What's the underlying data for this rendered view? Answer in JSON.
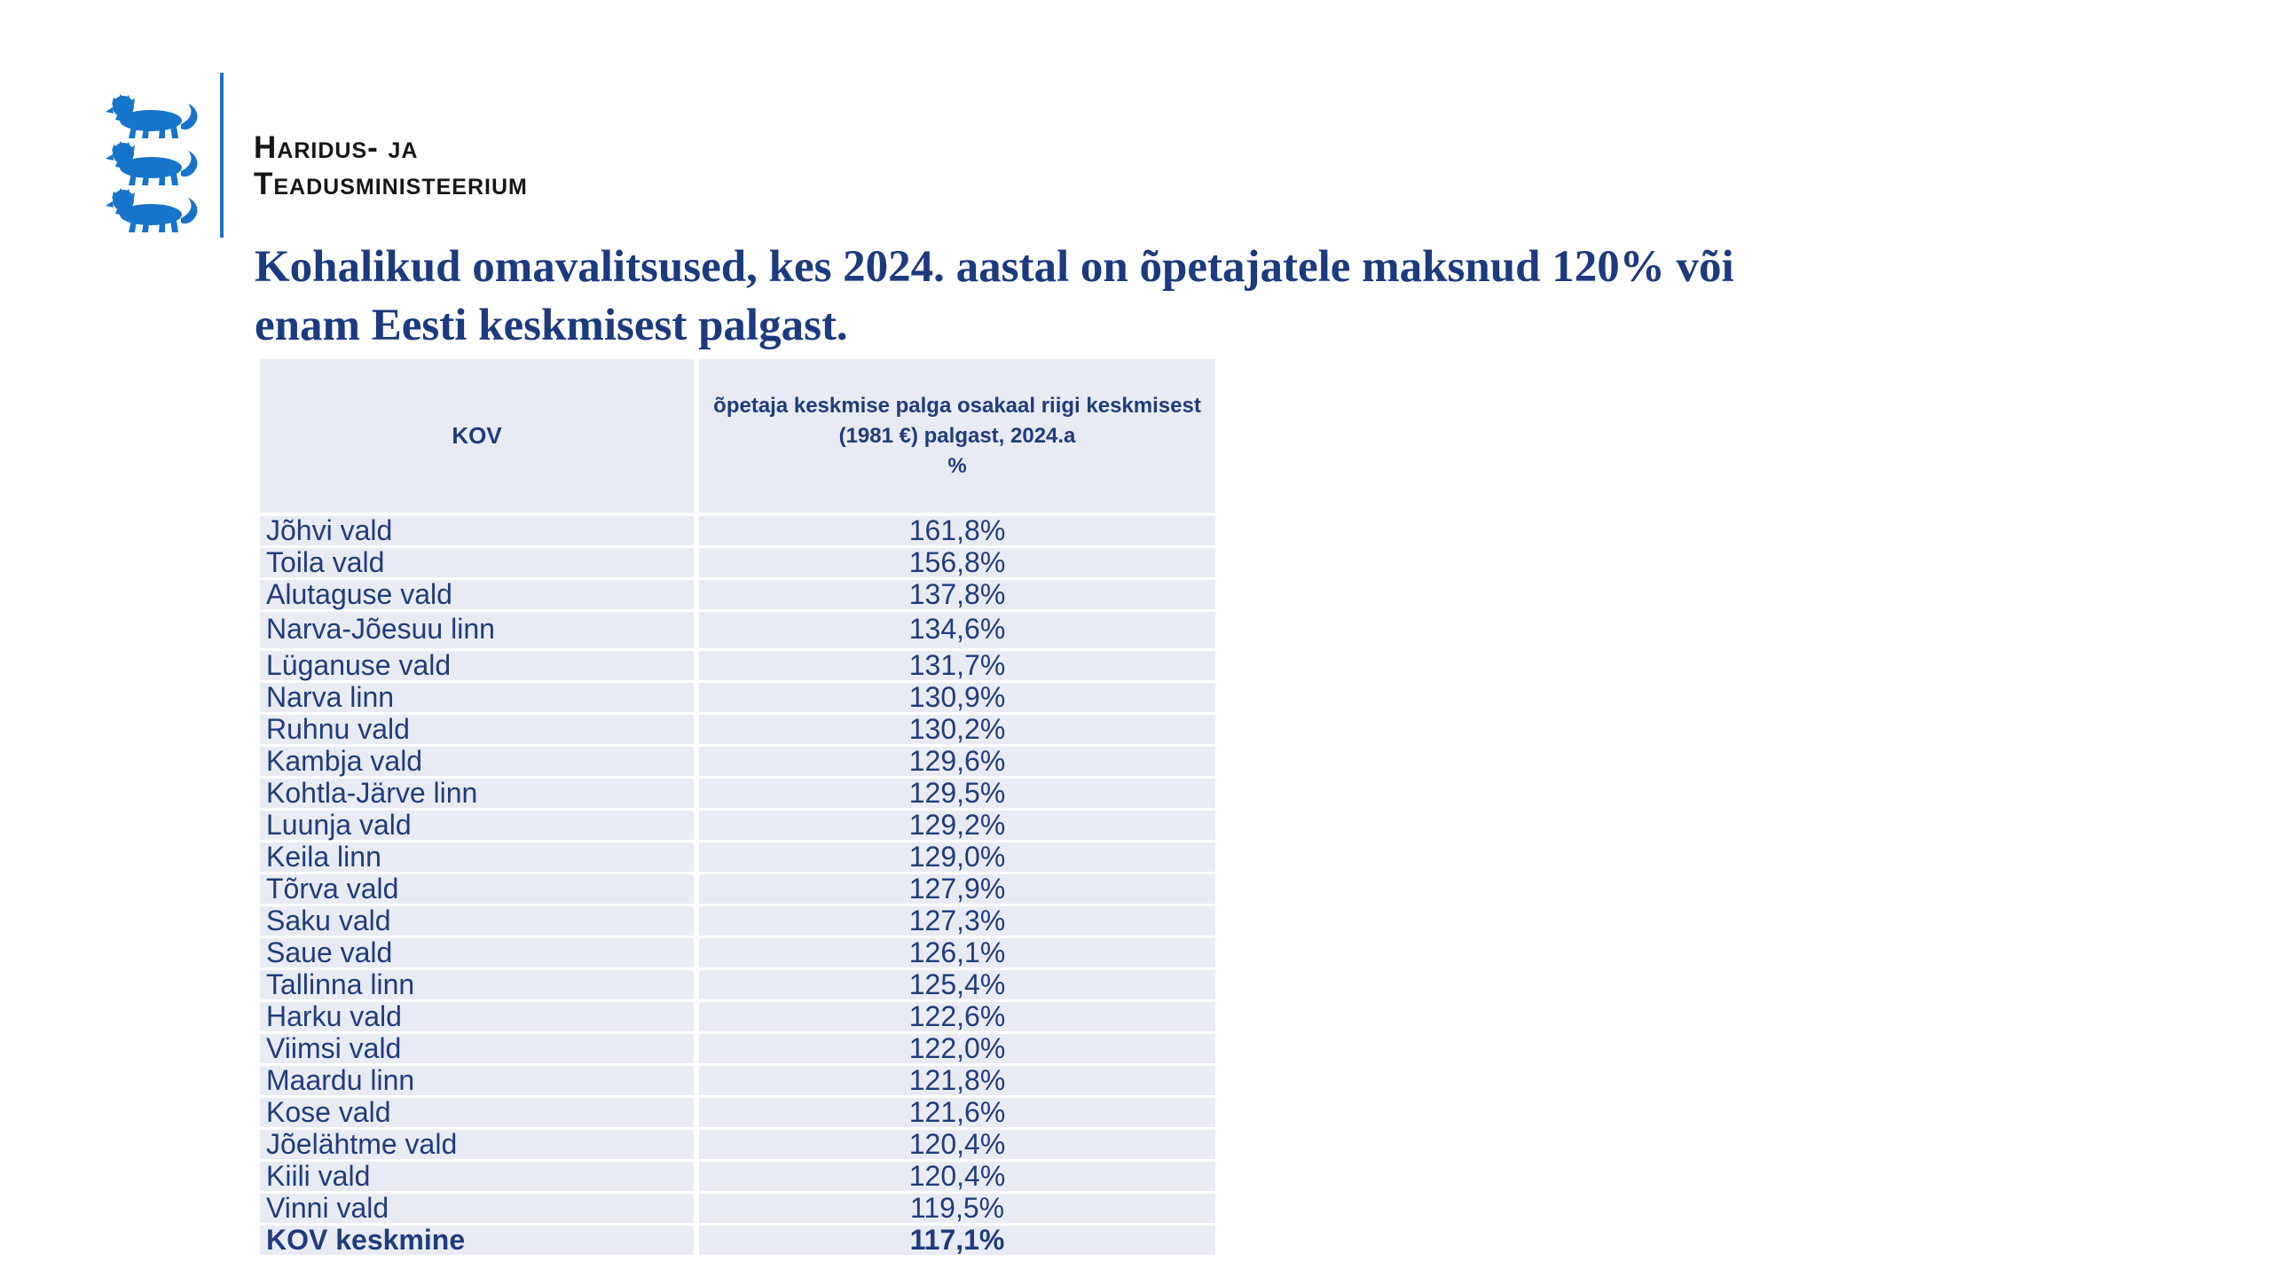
{
  "logo": {
    "name_line1": "Haridus- ja",
    "name_line2": "Teadusministeerium"
  },
  "title": {
    "line1": "Kohalikud omavalitsused, kes 2024. aastal on õpetajatele maksnud 120% või",
    "line2": "enam Eesti keskmisest palgast."
  },
  "table": {
    "header": {
      "kov": "KOV",
      "share_line1": "õpetaja keskmise palga osakaal riigi keskmisest",
      "share_line2": "(1981 €) palgast, 2024.a",
      "share_line3": "%"
    },
    "rows": [
      {
        "kov": "Jõhvi vald",
        "value": "161,8%"
      },
      {
        "kov": "Toila vald",
        "value": "156,8%"
      },
      {
        "kov": "Alutaguse vald",
        "value": "137,8%"
      },
      {
        "kov": "Narva-Jõesuu linn",
        "value": "134,6%",
        "tall": true
      },
      {
        "kov": "Lüganuse vald",
        "value": "131,7%"
      },
      {
        "kov": "Narva linn",
        "value": "130,9%"
      },
      {
        "kov": "Ruhnu vald",
        "value": "130,2%"
      },
      {
        "kov": "Kambja vald",
        "value": "129,6%"
      },
      {
        "kov": "Kohtla-Järve linn",
        "value": "129,5%"
      },
      {
        "kov": "Luunja vald",
        "value": "129,2%"
      },
      {
        "kov": "Keila linn",
        "value": "129,0%"
      },
      {
        "kov": "Tõrva vald",
        "value": "127,9%"
      },
      {
        "kov": "Saku vald",
        "value": "127,3%"
      },
      {
        "kov": "Saue vald",
        "value": "126,1%"
      },
      {
        "kov": "Tallinna linn",
        "value": "125,4%"
      },
      {
        "kov": "Harku vald",
        "value": "122,6%"
      },
      {
        "kov": "Viimsi vald",
        "value": "122,0%"
      },
      {
        "kov": "Maardu linn",
        "value": "121,8%"
      },
      {
        "kov": "Kose vald",
        "value": "121,6%"
      },
      {
        "kov": "Jõelähtme vald",
        "value": "120,4%"
      },
      {
        "kov": "Kiili vald",
        "value": "120,4%"
      },
      {
        "kov": "Vinni vald",
        "value": "119,5%"
      },
      {
        "kov": "KOV keskmine",
        "value": "117,1%",
        "bold": true
      }
    ]
  },
  "colors": {
    "accent_blue": "#1774cb",
    "navy_text": "#1e3c7e",
    "title_navy": "#1c3a80",
    "table_bg": "#e9ebf4"
  }
}
